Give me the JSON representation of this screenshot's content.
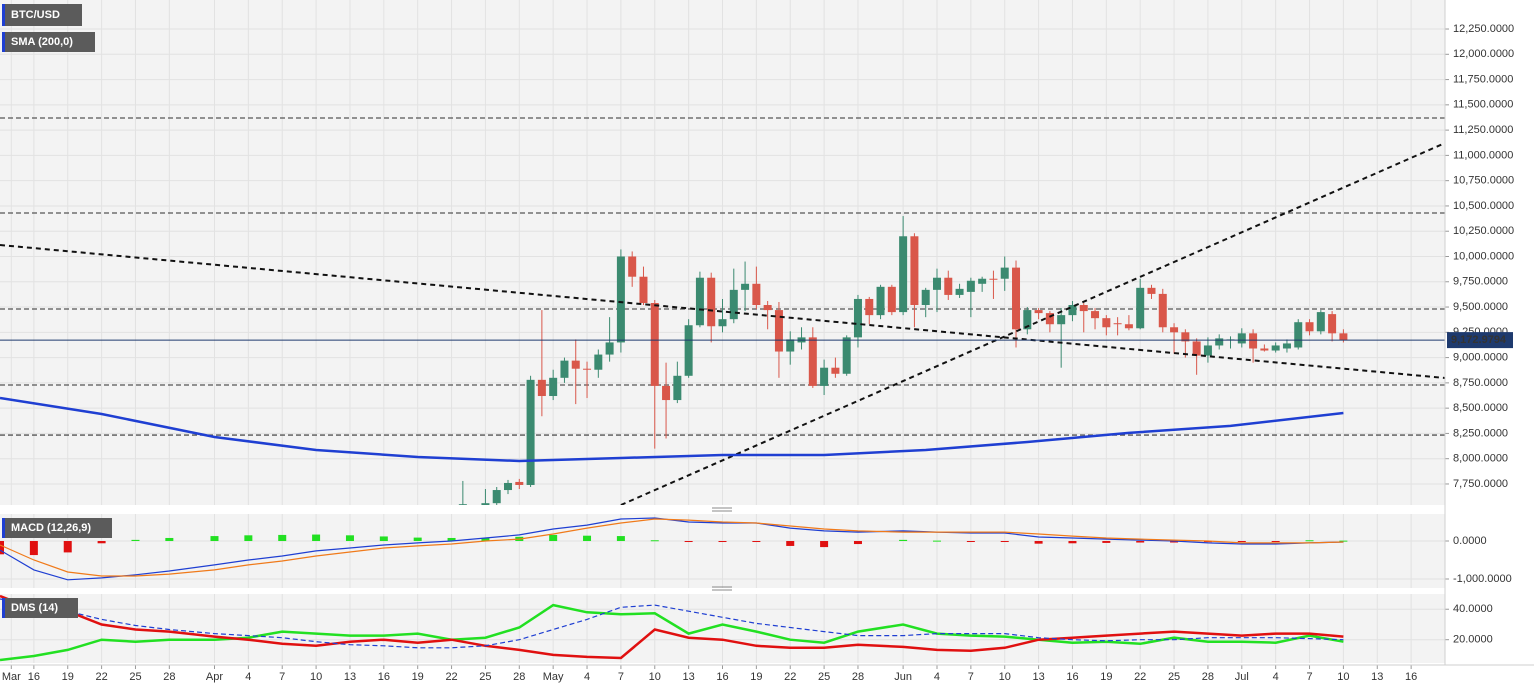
{
  "chart_data": [
    {
      "type": "candlestick",
      "title": "BTC/USD",
      "xlim": [
        "Mar 13",
        "Jul 19"
      ],
      "ylim": [
        7542,
        12537
      ],
      "yticks": [
        {
          "value": 7750,
          "label": "7,750.0000"
        },
        {
          "value": 8000,
          "label": "8,000.0000"
        },
        {
          "value": 8250,
          "label": "8,250.0000"
        },
        {
          "value": 8500,
          "label": "8,500.0000"
        },
        {
          "value": 8750,
          "label": "8,750.0000"
        },
        {
          "value": 9000,
          "label": "9,000.0000"
        },
        {
          "value": 9250,
          "label": "9,250.0000"
        },
        {
          "value": 9500,
          "label": "9,500.0000"
        },
        {
          "value": 9750,
          "label": "9,750.0000"
        },
        {
          "value": 10000,
          "label": "10,000.0000"
        },
        {
          "value": 10250,
          "label": "10,250.0000"
        },
        {
          "value": 10500,
          "label": "10,500.0000"
        },
        {
          "value": 10750,
          "label": "10,750.0000"
        },
        {
          "value": 11000,
          "label": "11,000.0000"
        },
        {
          "value": 11250,
          "label": "11,250.0000"
        },
        {
          "value": 11500,
          "label": "11,500.0000"
        },
        {
          "value": 11750,
          "label": "11,750.0000"
        },
        {
          "value": 12000,
          "label": "12,000.0000"
        },
        {
          "value": 12250,
          "label": "12,250.0000"
        }
      ],
      "grid": true,
      "up_color": "#3b8a70",
      "down_color": "#d9574a",
      "x": [
        "Apr 23",
        "Apr 25",
        "Apr 26",
        "Apr 27",
        "Apr 28",
        "Apr 29",
        "Apr 30",
        "May 1",
        "May 2",
        "May 3",
        "May 4",
        "May 5",
        "May 6",
        "May 7",
        "May 8",
        "May 9",
        "May 10",
        "May 11",
        "May 12",
        "May 13",
        "May 14",
        "May 15",
        "May 16",
        "May 17",
        "May 18",
        "May 19",
        "May 20",
        "May 21",
        "May 22",
        "May 23",
        "May 24",
        "May 25",
        "May 26",
        "May 27",
        "May 28",
        "May 29",
        "May 30",
        "May 31",
        "Jun 1",
        "Jun 2",
        "Jun 3",
        "Jun 4",
        "Jun 5",
        "Jun 6",
        "Jun 7",
        "Jun 8",
        "Jun 9",
        "Jun 10",
        "Jun 11",
        "Jun 12",
        "Jun 13",
        "Jun 14",
        "Jun 15",
        "Jun 16",
        "Jun 17",
        "Jun 18",
        "Jun 19",
        "Jun 20",
        "Jun 21",
        "Jun 22",
        "Jun 23",
        "Jun 24",
        "Jun 25",
        "Jun 26",
        "Jun 27",
        "Jun 28",
        "Jun 29",
        "Jun 30",
        "Jul 1",
        "Jul 2",
        "Jul 3",
        "Jul 4",
        "Jul 5",
        "Jul 6",
        "Jul 7",
        "Jul 8",
        "Jul 9",
        "Jul 10"
      ],
      "open": [
        7500,
        7540,
        7560,
        7690,
        7770,
        7740,
        8780,
        8620,
        8800,
        8970,
        8890,
        8880,
        9030,
        9150,
        10000,
        9800,
        9540,
        8720,
        8580,
        8820,
        9320,
        9790,
        9310,
        9380,
        9670,
        9730,
        9520,
        9470,
        9060,
        9150,
        9200,
        8720,
        8900,
        8840,
        9200,
        9580,
        9420,
        9700,
        9450,
        10200,
        9520,
        9670,
        9790,
        9620,
        9650,
        9730,
        9780,
        9780,
        9890,
        9280,
        9470,
        9440,
        9330,
        9420,
        9520,
        9460,
        9390,
        9340,
        9330,
        9290,
        9690,
        9630,
        9300,
        9250,
        9160,
        9020,
        9120,
        9170,
        9140,
        9240,
        9090,
        9070,
        9090,
        9100,
        9350,
        9260,
        9430,
        9240
      ],
      "high": [
        7780,
        7700,
        7720,
        7790,
        7800,
        8820,
        9470,
        8880,
        9000,
        9180,
        8960,
        9080,
        9400,
        10070,
        10050,
        9900,
        9570,
        8950,
        8960,
        9380,
        9850,
        9840,
        9580,
        9880,
        9950,
        9900,
        9560,
        9550,
        9260,
        9300,
        9300,
        8980,
        9000,
        9220,
        9620,
        9600,
        9720,
        9720,
        10400,
        10230,
        9690,
        9880,
        9860,
        9730,
        9790,
        9800,
        9860,
        10000,
        9960,
        9500,
        9490,
        9460,
        9490,
        9560,
        9540,
        9490,
        9420,
        9400,
        9420,
        9780,
        9720,
        9680,
        9340,
        9280,
        9190,
        9200,
        9230,
        9210,
        9290,
        9280,
        9130,
        9150,
        9180,
        9380,
        9380,
        9470,
        9460,
        9280
      ],
      "low": [
        7450,
        7500,
        7520,
        7650,
        7700,
        7720,
        8420,
        8580,
        8750,
        8540,
        8600,
        8800,
        8960,
        9050,
        9700,
        9520,
        8100,
        8200,
        8550,
        8800,
        9300,
        9150,
        9250,
        9340,
        9460,
        9480,
        9280,
        8800,
        8930,
        9080,
        8700,
        8630,
        8800,
        8820,
        9100,
        9330,
        9380,
        9420,
        9420,
        9300,
        9400,
        9450,
        9570,
        9590,
        9400,
        9650,
        9580,
        9660,
        9100,
        9230,
        9380,
        9250,
        8900,
        9360,
        9250,
        9280,
        9220,
        9220,
        9270,
        9280,
        9580,
        9250,
        9040,
        9000,
        8830,
        8950,
        9080,
        9090,
        9100,
        8950,
        9060,
        9050,
        9050,
        9080,
        9220,
        9230,
        9160,
        9150
      ],
      "close": [
        7550,
        7560,
        7690,
        7760,
        7740,
        8780,
        8620,
        8800,
        8970,
        8890,
        8880,
        9030,
        9150,
        10000,
        9800,
        9540,
        8720,
        8580,
        8820,
        9320,
        9790,
        9310,
        9380,
        9670,
        9730,
        9520,
        9470,
        9060,
        9180,
        9200,
        8720,
        8900,
        8840,
        9200,
        9580,
        9420,
        9700,
        9450,
        10200,
        9520,
        9670,
        9790,
        9620,
        9680,
        9760,
        9780,
        9770,
        9890,
        9280,
        9470,
        9440,
        9330,
        9420,
        9520,
        9460,
        9390,
        9300,
        9330,
        9290,
        9690,
        9630,
        9300,
        9250,
        9160,
        9020,
        9120,
        9190,
        9180,
        9240,
        9090,
        9070,
        9120,
        9140,
        9350,
        9260,
        9450,
        9240,
        9175
      ],
      "sma": {
        "name": "SMA (200,0)",
        "color": "#1f3fd2",
        "x": [
          "Mar 13",
          "Mar 22",
          "Apr 1",
          "Apr 10",
          "Apr 19",
          "Apr 28",
          "May 7",
          "May 16",
          "May 25",
          "Jun 3",
          "Jun 12",
          "Jun 21",
          "Jun 30",
          "Jul 10"
        ],
        "values": [
          8600,
          8442,
          8215,
          8086,
          8017,
          7977,
          8007,
          8037,
          8037,
          8086,
          8165,
          8255,
          8324,
          8452
        ]
      },
      "levels": [
        11370,
        10430,
        9481,
        8729,
        8234
      ],
      "trendlines": [
        {
          "x": [
            "Mar 13",
            "Jul 19"
          ],
          "y": [
            10114,
            8798
          ]
        },
        {
          "x": [
            "May 7",
            "Jul 19"
          ],
          "y": [
            7542,
            11123
          ]
        }
      ],
      "last_price": {
        "value": 9172.9794,
        "label": "9,172.9794",
        "color": "#1e3a6e"
      }
    },
    {
      "type": "macd",
      "title": "MACD (12,26,9)",
      "xlim": [
        "Mar 13",
        "Jul 19"
      ],
      "ylim": [
        -1237,
        711
      ],
      "yticks": [
        {
          "value": 0,
          "label": "0.0000"
        },
        {
          "value": -1000,
          "label": "-1,000.0000"
        }
      ],
      "x": [
        "Mar 13",
        "Mar 16",
        "Mar 19",
        "Mar 22",
        "Mar 25",
        "Mar 28",
        "Apr 1",
        "Apr 4",
        "Apr 7",
        "Apr 10",
        "Apr 13",
        "Apr 16",
        "Apr 19",
        "Apr 22",
        "Apr 25",
        "Apr 28",
        "May 1",
        "May 4",
        "May 7",
        "May 10",
        "May 13",
        "May 16",
        "May 19",
        "May 22",
        "May 25",
        "May 28",
        "Jun 1",
        "Jun 4",
        "Jun 7",
        "Jun 10",
        "Jun 13",
        "Jun 16",
        "Jun 19",
        "Jun 22",
        "Jun 25",
        "Jun 28",
        "Jul 1",
        "Jul 4",
        "Jul 7",
        "Jul 10"
      ],
      "histogram": {
        "up_color": "#22e022",
        "down_color": "#e01010",
        "values": [
          -350,
          -370,
          -300,
          -60,
          30,
          80,
          130,
          150,
          160,
          170,
          150,
          120,
          90,
          80,
          80,
          110,
          160,
          140,
          130,
          20,
          -20,
          -25,
          -10,
          -130,
          -160,
          -80,
          30,
          10,
          -10,
          -20,
          -70,
          -60,
          -50,
          -40,
          -40,
          -30,
          -20,
          -10,
          20,
          10
        ]
      },
      "series": [
        {
          "color": "#1f3fd2",
          "values": [
            -240,
            -760,
            -1020,
            -970,
            -890,
            -790,
            -630,
            -500,
            -395,
            -260,
            -185,
            -105,
            -50,
            0,
            80,
            160,
            315,
            420,
            580,
            605,
            500,
            475,
            475,
            340,
            265,
            235,
            265,
            235,
            210,
            210,
            105,
            80,
            50,
            25,
            0,
            -50,
            -80,
            -80,
            -50,
            -25
          ]
        },
        {
          "color": "#f07a1a",
          "values": [
            -105,
            -500,
            -815,
            -920,
            -920,
            -870,
            -760,
            -630,
            -525,
            -395,
            -290,
            -185,
            -130,
            -80,
            0,
            50,
            185,
            340,
            475,
            580,
            550,
            500,
            475,
            395,
            315,
            265,
            235,
            235,
            235,
            235,
            185,
            130,
            80,
            50,
            25,
            0,
            -50,
            -50,
            -50,
            -25
          ]
        }
      ]
    },
    {
      "type": "dms",
      "title": "DMS (14)",
      "xlim": [
        "Mar 13",
        "Jul 19"
      ],
      "ylim": [
        4.7,
        50
      ],
      "yticks": [
        {
          "value": 20,
          "label": "20.0000"
        },
        {
          "value": 40,
          "label": "40.0000"
        }
      ],
      "x": [
        "Mar 13",
        "Mar 16",
        "Mar 19",
        "Mar 22",
        "Mar 25",
        "Mar 28",
        "Apr 1",
        "Apr 4",
        "Apr 7",
        "Apr 10",
        "Apr 13",
        "Apr 16",
        "Apr 19",
        "Apr 22",
        "Apr 25",
        "Apr 28",
        "May 1",
        "May 4",
        "May 7",
        "May 10",
        "May 13",
        "May 16",
        "May 19",
        "May 22",
        "May 25",
        "May 28",
        "Jun 1",
        "Jun 4",
        "Jun 7",
        "Jun 10",
        "Jun 13",
        "Jun 16",
        "Jun 19",
        "Jun 22",
        "Jun 25",
        "Jun 28",
        "Jul 1",
        "Jul 4",
        "Jul 7",
        "Jul 10"
      ],
      "series": [
        {
          "color": "#22e022",
          "values": [
            6.7,
            9.3,
            13.3,
            20,
            18.7,
            20,
            20,
            21.3,
            25.3,
            24,
            22.7,
            22.7,
            24,
            20,
            21.3,
            28,
            42.7,
            38,
            36.7,
            37.3,
            24,
            30,
            25.3,
            20,
            18,
            25.3,
            30,
            24,
            22.7,
            22,
            20,
            18,
            18.7,
            17.3,
            21.3,
            18.7,
            18.7,
            18,
            22.7,
            18.7
          ]
        },
        {
          "color": "#e01010",
          "values": [
            48.7,
            40,
            38.7,
            30,
            26.7,
            25.3,
            22,
            20,
            17.3,
            16,
            18.7,
            20,
            18,
            20,
            16,
            13.3,
            10,
            8.7,
            8,
            26.7,
            21.3,
            20,
            16,
            14.7,
            14.7,
            16.7,
            15.3,
            13.3,
            12.7,
            14.7,
            20,
            21.3,
            22.7,
            24,
            25.3,
            24,
            22.7,
            24,
            24,
            22
          ]
        },
        {
          "color": "#1f3fd2",
          "dashed": true,
          "values": [
            46.7,
            43.3,
            38.7,
            33.3,
            29.3,
            26.7,
            24,
            22.7,
            21.3,
            18.7,
            16.7,
            16,
            14.7,
            14.7,
            16,
            20,
            26.7,
            33.3,
            41.3,
            42.7,
            38.7,
            34.7,
            30.7,
            28,
            25.3,
            22.7,
            22.7,
            24,
            24,
            24,
            21.3,
            20,
            19.3,
            20,
            20,
            21.3,
            21.3,
            21.3,
            20.7,
            20
          ]
        }
      ],
      "xticks": [
        {
          "value": "Mar 14",
          "label": "Mar"
        },
        {
          "value": "Mar 16",
          "label": "16"
        },
        {
          "value": "Mar 19",
          "label": "19"
        },
        {
          "value": "Mar 22",
          "label": "22"
        },
        {
          "value": "Mar 25",
          "label": "25"
        },
        {
          "value": "Mar 28",
          "label": "28"
        },
        {
          "value": "Apr 1",
          "label": "Apr"
        },
        {
          "value": "Apr 4",
          "label": "4"
        },
        {
          "value": "Apr 7",
          "label": "7"
        },
        {
          "value": "Apr 10",
          "label": "10"
        },
        {
          "value": "Apr 13",
          "label": "13"
        },
        {
          "value": "Apr 16",
          "label": "16"
        },
        {
          "value": "Apr 19",
          "label": "19"
        },
        {
          "value": "Apr 22",
          "label": "22"
        },
        {
          "value": "Apr 25",
          "label": "25"
        },
        {
          "value": "Apr 28",
          "label": "28"
        },
        {
          "value": "May 1",
          "label": "May"
        },
        {
          "value": "May 4",
          "label": "4"
        },
        {
          "value": "May 7",
          "label": "7"
        },
        {
          "value": "May 10",
          "label": "10"
        },
        {
          "value": "May 13",
          "label": "13"
        },
        {
          "value": "May 16",
          "label": "16"
        },
        {
          "value": "May 19",
          "label": "19"
        },
        {
          "value": "May 22",
          "label": "22"
        },
        {
          "value": "May 25",
          "label": "25"
        },
        {
          "value": "May 28",
          "label": "28"
        },
        {
          "value": "Jun 1",
          "label": "Jun"
        },
        {
          "value": "Jun 4",
          "label": "4"
        },
        {
          "value": "Jun 7",
          "label": "7"
        },
        {
          "value": "Jun 10",
          "label": "10"
        },
        {
          "value": "Jun 13",
          "label": "13"
        },
        {
          "value": "Jun 16",
          "label": "16"
        },
        {
          "value": "Jun 19",
          "label": "19"
        },
        {
          "value": "Jun 22",
          "label": "22"
        },
        {
          "value": "Jun 25",
          "label": "25"
        },
        {
          "value": "Jun 28",
          "label": "28"
        },
        {
          "value": "Jul 1",
          "label": "Jul"
        },
        {
          "value": "Jul 4",
          "label": "4"
        },
        {
          "value": "Jul 7",
          "label": "7"
        },
        {
          "value": "Jul 10",
          "label": "10"
        },
        {
          "value": "Jul 13",
          "label": "13"
        },
        {
          "value": "Jul 16",
          "label": "16"
        }
      ]
    }
  ]
}
